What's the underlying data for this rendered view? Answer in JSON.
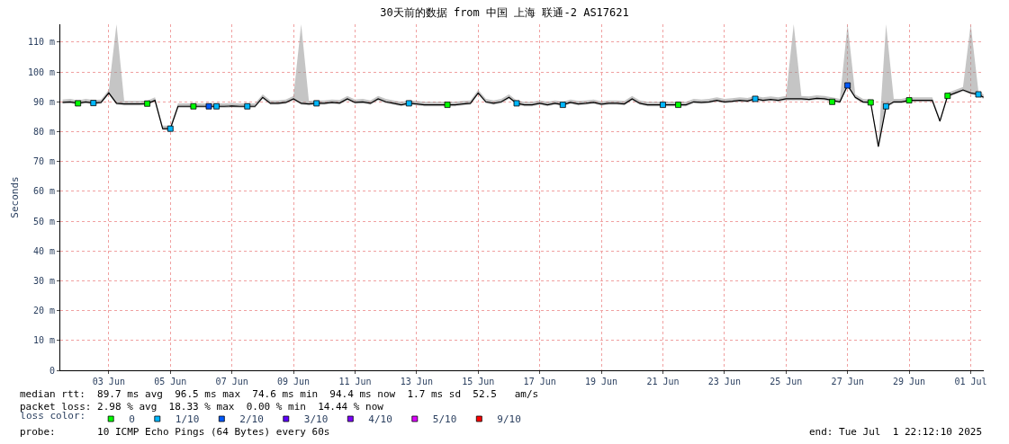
{
  "chart_data": {
    "type": "line",
    "title": "30天前的数据 from 中国 上海 联通-2 AS17621",
    "ylabel": "Seconds",
    "legend_title": "loss color:",
    "x": [
      "2025-06-02T00:00",
      "2025-06-02T06:00",
      "2025-06-02T12:00",
      "2025-06-02T18:00",
      "2025-06-03T00:00",
      "2025-06-03T06:00",
      "2025-06-03T12:00",
      "2025-06-03T18:00",
      "2025-06-04T00:00",
      "2025-06-04T06:00",
      "2025-06-04T12:00",
      "2025-06-04T18:00",
      "2025-06-05T00:00",
      "2025-06-05T06:00",
      "2025-06-05T12:00",
      "2025-06-05T18:00",
      "2025-06-06T00:00",
      "2025-06-06T06:00",
      "2025-06-06T12:00",
      "2025-06-06T18:00",
      "2025-06-07T00:00",
      "2025-06-07T06:00",
      "2025-06-07T12:00",
      "2025-06-07T18:00",
      "2025-06-08T00:00",
      "2025-06-08T06:00",
      "2025-06-08T12:00",
      "2025-06-08T18:00",
      "2025-06-09T00:00",
      "2025-06-09T06:00",
      "2025-06-09T12:00",
      "2025-06-09T18:00",
      "2025-06-10T00:00",
      "2025-06-10T06:00",
      "2025-06-10T12:00",
      "2025-06-10T18:00",
      "2025-06-11T00:00",
      "2025-06-11T06:00",
      "2025-06-11T12:00",
      "2025-06-11T18:00",
      "2025-06-12T00:00",
      "2025-06-12T06:00",
      "2025-06-12T12:00",
      "2025-06-12T18:00",
      "2025-06-13T00:00",
      "2025-06-13T06:00",
      "2025-06-13T12:00",
      "2025-06-13T18:00",
      "2025-06-14T00:00",
      "2025-06-14T06:00",
      "2025-06-14T12:00",
      "2025-06-14T18:00",
      "2025-06-15T00:00",
      "2025-06-15T06:00",
      "2025-06-15T12:00",
      "2025-06-15T18:00",
      "2025-06-16T00:00",
      "2025-06-16T06:00",
      "2025-06-16T12:00",
      "2025-06-16T18:00",
      "2025-06-17T00:00",
      "2025-06-17T06:00",
      "2025-06-17T12:00",
      "2025-06-17T18:00",
      "2025-06-18T00:00",
      "2025-06-18T06:00",
      "2025-06-18T12:00",
      "2025-06-18T18:00",
      "2025-06-19T00:00",
      "2025-06-19T06:00",
      "2025-06-19T12:00",
      "2025-06-19T18:00",
      "2025-06-20T00:00",
      "2025-06-20T06:00",
      "2025-06-20T12:00",
      "2025-06-20T18:00",
      "2025-06-21T00:00",
      "2025-06-21T06:00",
      "2025-06-21T12:00",
      "2025-06-21T18:00",
      "2025-06-22T00:00",
      "2025-06-22T06:00",
      "2025-06-22T12:00",
      "2025-06-22T18:00",
      "2025-06-23T00:00",
      "2025-06-23T06:00",
      "2025-06-23T12:00",
      "2025-06-23T18:00",
      "2025-06-24T00:00",
      "2025-06-24T06:00",
      "2025-06-24T12:00",
      "2025-06-24T18:00",
      "2025-06-25T00:00",
      "2025-06-25T06:00",
      "2025-06-25T12:00",
      "2025-06-25T18:00",
      "2025-06-26T00:00",
      "2025-06-26T06:00",
      "2025-06-26T12:00",
      "2025-06-26T18:00",
      "2025-06-27T00:00",
      "2025-06-27T06:00",
      "2025-06-27T12:00",
      "2025-06-27T18:00",
      "2025-06-28T00:00",
      "2025-06-28T06:00",
      "2025-06-28T12:00",
      "2025-06-28T18:00",
      "2025-06-29T00:00",
      "2025-06-29T06:00",
      "2025-06-29T12:00",
      "2025-06-29T18:00",
      "2025-06-30T00:00",
      "2025-06-30T06:00",
      "2025-06-30T12:00",
      "2025-06-30T18:00",
      "2025-07-01T00:00",
      "2025-07-01T06:00",
      "2025-07-01T12:00",
      "2025-07-01T18:00",
      "2025-07-01T22:00"
    ],
    "series": [
      {
        "color": "#000000",
        "marker": "none",
        "values": [
          89.8,
          90.0,
          89.5,
          90.0,
          89.6,
          89.8,
          93.0,
          89.5,
          89.3,
          89.3,
          89.3,
          89.4,
          90.5,
          81.0,
          81.0,
          88.5,
          88.5,
          88.5,
          88.5,
          88.5,
          88.5,
          88.5,
          88.6,
          88.5,
          88.5,
          88.5,
          91.5,
          89.5,
          89.5,
          89.8,
          91.0,
          89.5,
          89.3,
          89.5,
          89.5,
          89.8,
          89.6,
          91.0,
          89.8,
          90.0,
          89.5,
          91.0,
          90.0,
          89.5,
          89.0,
          89.5,
          89.3,
          89.0,
          89.0,
          89.0,
          89.0,
          89.0,
          89.3,
          89.5,
          93.0,
          90.0,
          89.5,
          90.0,
          91.5,
          89.5,
          89.0,
          89.0,
          89.5,
          89.0,
          89.5,
          89.0,
          89.8,
          89.3,
          89.5,
          89.8,
          89.2,
          89.5,
          89.5,
          89.3,
          91.0,
          89.5,
          89.0,
          89.0,
          89.0,
          89.0,
          89.0,
          89.0,
          90.0,
          89.8,
          90.0,
          90.5,
          90.0,
          90.2,
          90.5,
          90.3,
          91.0,
          90.5,
          90.8,
          90.5,
          91.0,
          91.0,
          91.0,
          90.8,
          91.2,
          91.0,
          90.5,
          90.0,
          95.5,
          91.5,
          90.0,
          89.8,
          75.0,
          88.5,
          90.0,
          90.0,
          90.5,
          90.5,
          90.5,
          90.5,
          83.5,
          92.0,
          93.0,
          94.0,
          93.0,
          92.5,
          91.5
        ],
        "lower": [
          89.3,
          89.5,
          89.0,
          89.5,
          89.1,
          89.3,
          92.5,
          89.0,
          88.8,
          88.8,
          88.8,
          88.9,
          90.0,
          80.5,
          80.5,
          88.0,
          88.0,
          88.0,
          88.0,
          88.0,
          88.0,
          88.0,
          88.1,
          88.0,
          88.0,
          88.0,
          91.0,
          89.0,
          89.0,
          89.3,
          90.5,
          89.0,
          88.8,
          89.0,
          89.0,
          89.3,
          89.1,
          90.5,
          89.3,
          89.5,
          89.0,
          90.5,
          89.5,
          89.0,
          88.5,
          89.0,
          88.8,
          88.5,
          88.5,
          88.5,
          88.5,
          88.5,
          88.8,
          89.0,
          92.5,
          89.5,
          89.0,
          89.5,
          91.0,
          89.0,
          88.5,
          88.5,
          89.0,
          88.5,
          89.0,
          88.5,
          89.3,
          88.8,
          89.0,
          89.3,
          88.7,
          89.0,
          89.0,
          88.8,
          90.5,
          89.0,
          88.5,
          88.5,
          88.5,
          88.5,
          88.5,
          88.5,
          89.5,
          89.3,
          89.5,
          90.0,
          89.5,
          89.7,
          90.0,
          89.8,
          90.5,
          90.0,
          90.3,
          90.0,
          90.5,
          90.5,
          90.5,
          90.3,
          90.7,
          90.5,
          90.0,
          89.5,
          95.0,
          91.0,
          89.5,
          89.3,
          74.5,
          88.0,
          89.5,
          89.5,
          90.0,
          90.0,
          90.0,
          90.0,
          83.0,
          91.5,
          92.5,
          93.5,
          92.5,
          92.0,
          91.0
        ],
        "upper": [
          90.8,
          91.0,
          90.5,
          91.0,
          90.6,
          90.8,
          94.0,
          116.0,
          90.3,
          90.3,
          90.3,
          90.4,
          91.5,
          82.0,
          82.0,
          89.5,
          89.5,
          89.5,
          89.5,
          89.5,
          89.5,
          89.5,
          89.6,
          89.5,
          89.5,
          89.5,
          92.5,
          90.5,
          90.5,
          90.8,
          92.0,
          116.0,
          90.3,
          90.5,
          90.5,
          90.8,
          90.6,
          92.0,
          90.8,
          91.0,
          90.5,
          92.0,
          91.0,
          90.5,
          90.0,
          90.5,
          90.3,
          90.0,
          90.0,
          90.0,
          90.0,
          90.0,
          90.3,
          90.5,
          94.0,
          91.0,
          90.5,
          91.0,
          92.5,
          90.5,
          90.0,
          90.0,
          90.5,
          90.0,
          90.5,
          90.0,
          90.8,
          90.3,
          90.5,
          90.8,
          90.2,
          90.5,
          90.5,
          90.3,
          92.0,
          90.5,
          90.0,
          90.0,
          90.0,
          90.0,
          90.0,
          90.0,
          91.0,
          90.8,
          91.0,
          91.5,
          91.0,
          91.2,
          91.5,
          91.3,
          92.0,
          91.5,
          91.8,
          91.5,
          92.0,
          116.0,
          92.0,
          91.8,
          92.2,
          92.0,
          91.5,
          91.0,
          116.0,
          92.5,
          91.0,
          90.8,
          76.0,
          116.0,
          91.0,
          91.0,
          91.5,
          91.5,
          91.5,
          91.5,
          84.5,
          93.0,
          94.0,
          95.0,
          116.0,
          93.5,
          92.5
        ]
      },
      {
        "type": "scatter",
        "name": "0",
        "color": "#00ff00",
        "marker": "square",
        "x": [
          "2025-06-02T12:00",
          "2025-06-04T18:00",
          "2025-06-06T06:00",
          "2025-06-14T12:00",
          "2025-06-22T00:00",
          "2025-06-27T00:00",
          "2025-06-28T06:00",
          "2025-06-29T12:00",
          "2025-06-30T18:00"
        ],
        "values": [
          89.5,
          89.4,
          88.5,
          89.0,
          89.0,
          90.0,
          89.8,
          90.5,
          92.0
        ]
      },
      {
        "type": "scatter",
        "name": "1/10",
        "color": "#00b8ff",
        "marker": "square",
        "x": [
          "2025-06-03T00:00",
          "2025-06-05T12:00",
          "2025-06-07T00:00",
          "2025-06-08T00:00",
          "2025-06-10T06:00",
          "2025-06-13T06:00",
          "2025-06-16T18:00",
          "2025-06-18T06:00",
          "2025-06-21T12:00",
          "2025-06-24T12:00",
          "2025-06-28T18:00",
          "2025-07-01T18:00"
        ],
        "values": [
          89.6,
          81.0,
          88.5,
          88.5,
          89.5,
          89.5,
          89.5,
          89.0,
          89.0,
          91.0,
          88.5,
          92.5
        ]
      },
      {
        "type": "scatter",
        "name": "2/10",
        "color": "#0059ff",
        "marker": "square",
        "x": [
          "2025-06-06T18:00",
          "2025-06-27T12:00"
        ],
        "values": [
          88.5,
          95.5
        ]
      },
      {
        "type": "scatter",
        "name": "3/10",
        "color": "#5e00ff",
        "marker": "square",
        "values": [
          null,
          null,
          null,
          null,
          null,
          null,
          null,
          null,
          null,
          null,
          null,
          null,
          null,
          null,
          null,
          null,
          null,
          null,
          null,
          null,
          null,
          null,
          null,
          null,
          null,
          null,
          null,
          null,
          null,
          null,
          null,
          null,
          null,
          null,
          null,
          null,
          null,
          null,
          null,
          null,
          null,
          null,
          null,
          null,
          null,
          null,
          null,
          null,
          null,
          null,
          null,
          null,
          null,
          null,
          null,
          null,
          null,
          null,
          null,
          null,
          null,
          null,
          null,
          null,
          null,
          null,
          null,
          null,
          null,
          null,
          null,
          null,
          null,
          null,
          null,
          null,
          null,
          null,
          null,
          null,
          null,
          null,
          null,
          null,
          null,
          null,
          null,
          null,
          null,
          null,
          null,
          null,
          null,
          null,
          null,
          null,
          null,
          null,
          null,
          null,
          null,
          null,
          null,
          null,
          null,
          null,
          null,
          null,
          null,
          null,
          null,
          null,
          null,
          null,
          null,
          null,
          null,
          null,
          null,
          null,
          null
        ]
      },
      {
        "type": "scatter",
        "name": "4/10",
        "color": "#7e00ff",
        "marker": "square",
        "values": [
          null,
          null,
          null,
          null,
          null,
          null,
          null,
          null,
          null,
          null,
          null,
          null,
          null,
          null,
          null,
          null,
          null,
          null,
          null,
          null,
          null,
          null,
          null,
          null,
          null,
          null,
          null,
          null,
          null,
          null,
          null,
          null,
          null,
          null,
          null,
          null,
          null,
          null,
          null,
          null,
          null,
          null,
          null,
          null,
          null,
          null,
          null,
          null,
          null,
          null,
          null,
          null,
          null,
          null,
          null,
          null,
          null,
          null,
          null,
          null,
          null,
          null,
          null,
          null,
          null,
          null,
          null,
          null,
          null,
          null,
          null,
          null,
          null,
          null,
          null,
          null,
          null,
          null,
          null,
          null,
          null,
          null,
          null,
          null,
          null,
          null,
          null,
          null,
          null,
          null,
          null,
          null,
          null,
          null,
          null,
          null,
          null,
          null,
          null,
          null,
          null,
          null,
          null,
          null,
          null,
          null,
          null,
          null,
          null,
          null,
          null,
          null,
          null,
          null,
          null,
          null,
          null,
          null,
          null,
          null,
          null
        ]
      },
      {
        "type": "scatter",
        "name": "5/10",
        "color": "#dd00ff",
        "marker": "square",
        "values": [
          null,
          null,
          null,
          null,
          null,
          null,
          null,
          null,
          null,
          null,
          null,
          null,
          null,
          null,
          null,
          null,
          null,
          null,
          null,
          null,
          null,
          null,
          null,
          null,
          null,
          null,
          null,
          null,
          null,
          null,
          null,
          null,
          null,
          null,
          null,
          null,
          null,
          null,
          null,
          null,
          null,
          null,
          null,
          null,
          null,
          null,
          null,
          null,
          null,
          null,
          null,
          null,
          null,
          null,
          null,
          null,
          null,
          null,
          null,
          null,
          null,
          null,
          null,
          null,
          null,
          null,
          null,
          null,
          null,
          null,
          null,
          null,
          null,
          null,
          null,
          null,
          null,
          null,
          null,
          null,
          null,
          null,
          null,
          null,
          null,
          null,
          null,
          null,
          null,
          null,
          null,
          null,
          null,
          null,
          null,
          null,
          null,
          null,
          null,
          null,
          null,
          null,
          null,
          null,
          null,
          null,
          null,
          null,
          null,
          null,
          null,
          null,
          null,
          null,
          null,
          null,
          null,
          null,
          null,
          null,
          null
        ]
      },
      {
        "type": "scatter",
        "name": "9/10",
        "color": "#ff0000",
        "marker": "square",
        "values": [
          null,
          null,
          null,
          null,
          null,
          null,
          null,
          null,
          null,
          null,
          null,
          null,
          null,
          null,
          null,
          null,
          null,
          null,
          null,
          null,
          null,
          null,
          null,
          null,
          null,
          null,
          null,
          null,
          null,
          null,
          null,
          null,
          null,
          null,
          null,
          null,
          null,
          null,
          null,
          null,
          null,
          null,
          null,
          null,
          null,
          null,
          null,
          null,
          null,
          null,
          null,
          null,
          null,
          null,
          null,
          null,
          null,
          null,
          null,
          null,
          null,
          null,
          null,
          null,
          null,
          null,
          null,
          null,
          null,
          null,
          null,
          null,
          null,
          null,
          null,
          null,
          null,
          null,
          null,
          null,
          null,
          null,
          null,
          null,
          null,
          null,
          null,
          null,
          null,
          null,
          null,
          null,
          null,
          null,
          null,
          null,
          null,
          null,
          null,
          null,
          null,
          null,
          null,
          null,
          null,
          null,
          null,
          null,
          null,
          null,
          null,
          null,
          null,
          null,
          null,
          null,
          null,
          null,
          null,
          null,
          null
        ]
      }
    ],
    "xlim": [
      "2025-06-01T22:12",
      "2025-07-01T22:12"
    ],
    "xticks": [
      {
        "value": "2025-06-03T12:00",
        "label": "03 Jun"
      },
      {
        "value": "2025-06-05T12:00",
        "label": "05 Jun"
      },
      {
        "value": "2025-06-07T12:00",
        "label": "07 Jun"
      },
      {
        "value": "2025-06-09T12:00",
        "label": "09 Jun"
      },
      {
        "value": "2025-06-11T12:00",
        "label": "11 Jun"
      },
      {
        "value": "2025-06-13T12:00",
        "label": "13 Jun"
      },
      {
        "value": "2025-06-15T12:00",
        "label": "15 Jun"
      },
      {
        "value": "2025-06-17T12:00",
        "label": "17 Jun"
      },
      {
        "value": "2025-06-19T12:00",
        "label": "19 Jun"
      },
      {
        "value": "2025-06-21T12:00",
        "label": "21 Jun"
      },
      {
        "value": "2025-06-23T12:00",
        "label": "23 Jun"
      },
      {
        "value": "2025-06-25T12:00",
        "label": "25 Jun"
      },
      {
        "value": "2025-06-27T12:00",
        "label": "27 Jun"
      },
      {
        "value": "2025-06-29T12:00",
        "label": "29 Jun"
      },
      {
        "value": "2025-07-01T12:00",
        "label": "01 Jul"
      }
    ],
    "ylim": [
      0,
      116
    ],
    "yticks": [
      0,
      {
        "value": 10,
        "label": "10 m"
      },
      {
        "value": 20,
        "label": "20 m"
      },
      {
        "value": 30,
        "label": "30 m"
      },
      {
        "value": 40,
        "label": "40 m"
      },
      {
        "value": 50,
        "label": "50 m"
      },
      {
        "value": 60,
        "label": "60 m"
      },
      {
        "value": 70,
        "label": "70 m"
      },
      {
        "value": 80,
        "label": "80 m"
      },
      {
        "value": 90,
        "label": "90 m"
      },
      {
        "value": 100,
        "label": "100 m"
      },
      {
        "value": 110,
        "label": "110 m"
      }
    ],
    "grid": true,
    "legend": "bottom",
    "annotations": [
      "median rtt:  89.7 ms avg  96.5 ms max  74.6 ms min  94.4 ms now  1.7 ms sd  52.5   am/s",
      "packet loss: 2.98 % avg  18.33 % max  0.00 % min  14.44 % now",
      "probe:       10 ICMP Echo Pings (64 Bytes) every 60s",
      "end: Tue Jul  1 22:12:10 2025"
    ]
  }
}
